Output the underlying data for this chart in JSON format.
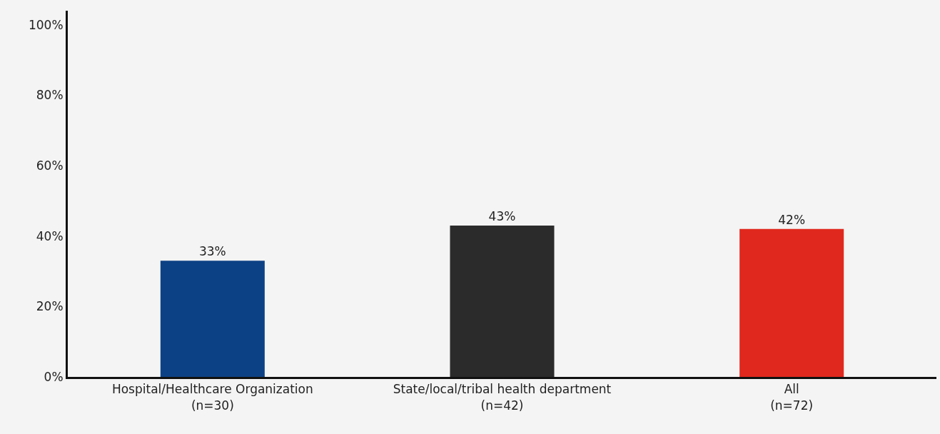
{
  "chart_data": {
    "type": "bar",
    "categories": [
      "Hospital/Healthcare Organization\n(n=30)",
      "State/local/tribal health department\n(n=42)",
      "All\n(n=72)"
    ],
    "values": [
      33,
      43,
      42
    ],
    "colors": [
      "#0d4185",
      "#2b2b2b",
      "#e0281e"
    ],
    "value_labels": [
      "33%",
      "43%",
      "42%"
    ],
    "ylim": [
      0,
      104
    ],
    "yticks": [
      {
        "value": 0,
        "label": "0%"
      },
      {
        "value": 20,
        "label": "20%"
      },
      {
        "value": 40,
        "label": "40%"
      },
      {
        "value": 60,
        "label": "60%"
      },
      {
        "value": 80,
        "label": "80%"
      },
      {
        "value": 100,
        "label": "100%"
      }
    ],
    "grid": false,
    "legend": false
  }
}
